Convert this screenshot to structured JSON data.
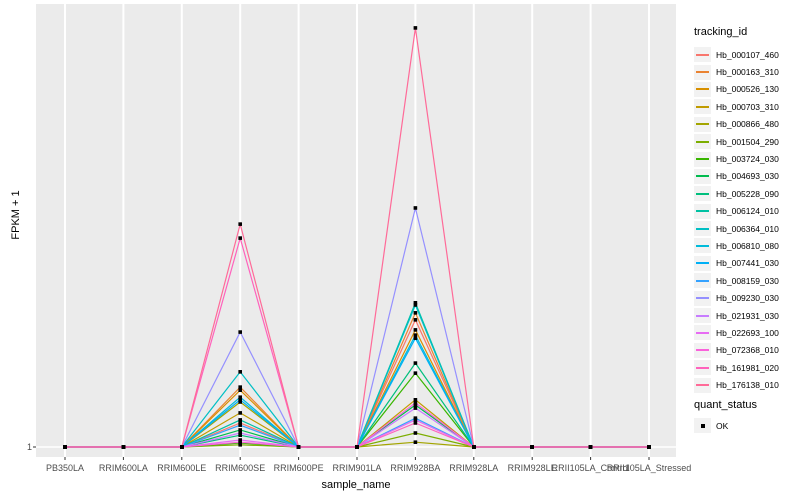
{
  "chart_data": {
    "type": "line",
    "title": "",
    "xlabel": "sample_name",
    "ylabel": "FPKM + 1",
    "y_scale": "log",
    "y_ticks": [
      {
        "label": "1",
        "frac": 0
      }
    ],
    "values_unit": "fraction of panel height above the FPKM+1=1 baseline (log-scale axis, only the tick '1' is labeled in the image)",
    "grid": "vertical major gridlines per sample, horizontal gridline at 1",
    "legend_position": "right",
    "categories": [
      "PB350LA",
      "RRIM600LA",
      "RRIM600LE",
      "RRIM600SE",
      "RRIM600PE",
      "RRIM901LA",
      "RRIM928BA",
      "RRIM928LA",
      "RRIM928LE",
      "RRII105LA_Control",
      "RRII105LA_Stressed"
    ],
    "series": [
      {
        "name": "Hb_000107_460",
        "color": "#F8766D",
        "values": [
          0,
          0,
          0,
          0.055,
          0,
          0,
          0.291,
          0,
          0,
          0,
          0
        ]
      },
      {
        "name": "Hb_000163_310",
        "color": "#EA8331",
        "values": [
          0,
          0,
          0,
          0.137,
          0,
          0,
          0.307,
          0,
          0,
          0,
          0
        ]
      },
      {
        "name": "Hb_000526_130",
        "color": "#D89000",
        "values": [
          0,
          0,
          0,
          0.13,
          0,
          0,
          0.268,
          0,
          0,
          0,
          0
        ]
      },
      {
        "name": "Hb_000703_310",
        "color": "#C09B00",
        "values": [
          0,
          0,
          0,
          0.078,
          0,
          0,
          0.108,
          0,
          0,
          0,
          0
        ]
      },
      {
        "name": "Hb_000866_480",
        "color": "#A3A500",
        "values": [
          0,
          0,
          0,
          0.103,
          0,
          0,
          0.011,
          0,
          0,
          0,
          0
        ]
      },
      {
        "name": "Hb_001504_290",
        "color": "#7CAE00",
        "values": [
          0,
          0,
          0,
          0.005,
          0,
          0,
          0.032,
          0,
          0,
          0,
          0
        ]
      },
      {
        "name": "Hb_003724_030",
        "color": "#39B600",
        "values": [
          0,
          0,
          0,
          0.009,
          0,
          0,
          0.169,
          0,
          0,
          0,
          0
        ]
      },
      {
        "name": "Hb_004693_030",
        "color": "#00BB4E",
        "values": [
          0,
          0,
          0,
          0.039,
          0,
          0,
          0.096,
          0,
          0,
          0,
          0
        ]
      },
      {
        "name": "Hb_005228_090",
        "color": "#00BF7D",
        "values": [
          0,
          0,
          0,
          0.027,
          0,
          0,
          0.192,
          0,
          0,
          0,
          0
        ]
      },
      {
        "name": "Hb_006124_010",
        "color": "#00C1A3",
        "values": [
          0,
          0,
          0,
          0.062,
          0,
          0,
          0.33,
          0,
          0,
          0,
          0
        ]
      },
      {
        "name": "Hb_006364_010",
        "color": "#00BFC4",
        "values": [
          0,
          0,
          0,
          0.172,
          0,
          0,
          0.325,
          0,
          0,
          0,
          0
        ]
      },
      {
        "name": "Hb_006810_080",
        "color": "#00BBDA",
        "values": [
          0,
          0,
          0,
          0.114,
          0,
          0,
          0.256,
          0,
          0,
          0,
          0
        ]
      },
      {
        "name": "Hb_007441_030",
        "color": "#00B0F6",
        "values": [
          0,
          0,
          0,
          0.108,
          0,
          0,
          0.249,
          0,
          0,
          0,
          0
        ]
      },
      {
        "name": "Hb_008159_030",
        "color": "#35A2FF",
        "values": [
          0,
          0,
          0,
          0.05,
          0,
          0,
          0.066,
          0,
          0,
          0,
          0
        ]
      },
      {
        "name": "Hb_009230_030",
        "color": "#9590FF",
        "values": [
          0,
          0,
          0,
          0.263,
          0,
          0,
          0.547,
          0,
          0,
          0,
          0
        ]
      },
      {
        "name": "Hb_021931_030",
        "color": "#C77CFF",
        "values": [
          0,
          0,
          0,
          0.032,
          0,
          0,
          0.089,
          0,
          0,
          0,
          0
        ]
      },
      {
        "name": "Hb_022693_100",
        "color": "#E76BF3",
        "values": [
          0,
          0,
          0,
          0.016,
          0,
          0,
          0.062,
          0,
          0,
          0,
          0
        ]
      },
      {
        "name": "Hb_072368_010",
        "color": "#FA62DB",
        "values": [
          0,
          0,
          0,
          0.011,
          0,
          0,
          0.101,
          0,
          0,
          0,
          0
        ]
      },
      {
        "name": "Hb_161981_020",
        "color": "#FF62BC",
        "values": [
          0,
          0,
          0,
          0.478,
          0,
          0,
          0.055,
          0,
          0,
          0,
          0
        ]
      },
      {
        "name": "Hb_176138_010",
        "color": "#FF6A98",
        "values": [
          0,
          0,
          0,
          0.51,
          0,
          0,
          0.959,
          0,
          0,
          0,
          0
        ]
      }
    ],
    "point_marker": {
      "shape": "filled-square",
      "color": "#000000"
    }
  },
  "axes": {
    "y_title": "FPKM + 1",
    "x_title": "sample_name",
    "y_tick_label": "1"
  },
  "legend": {
    "color_legend_title": "tracking_id",
    "shape_legend_title": "quant_status",
    "shape_legend_items": [
      {
        "label": "OK"
      }
    ]
  },
  "colors": {
    "panel_background": "#EBEBEB",
    "gridline": "#FFFFFF",
    "tick_text": "#4D4D4D",
    "axis_text": "#000000",
    "marker": "#000000",
    "legend_key_background": "#F2F2F2"
  }
}
